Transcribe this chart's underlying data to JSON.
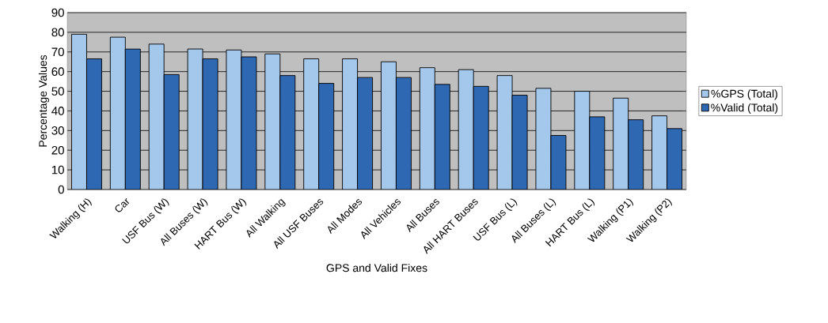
{
  "chart_data": {
    "type": "bar",
    "xlabel": "GPS and Valid Fixes",
    "ylabel": "Percentage Values",
    "categories": [
      "Walking (H)",
      "Car",
      "USF Bus (W)",
      "All Buses (W)",
      "HART Bus (W)",
      "All Walking",
      "All USF Buses",
      "All Modes",
      "All Vehicles",
      "All Buses",
      "All HART Buses",
      "USF Bus (L)",
      "All Buses (L)",
      "HART Bus (L)",
      "Walking (P1)",
      "Walking (P2)"
    ],
    "series": [
      {
        "name": "%GPS (Total)",
        "color": "#a3c8ec",
        "values": [
          79,
          77.5,
          74,
          71.5,
          71,
          69,
          66.5,
          66.5,
          65,
          62,
          61,
          58,
          51.5,
          50,
          46.5,
          37.5
        ]
      },
      {
        "name": "%Valid (Total)",
        "color": "#2e68b3",
        "values": [
          66.5,
          71.5,
          58.5,
          66.5,
          67.5,
          58,
          54,
          57,
          57,
          53.5,
          52.5,
          48,
          27.5,
          37,
          35.5,
          31
        ]
      }
    ],
    "ylim": [
      0,
      90
    ],
    "yticks": [
      0,
      10,
      20,
      30,
      40,
      50,
      60,
      70,
      80,
      90
    ],
    "grid": "y",
    "legend": "right"
  }
}
